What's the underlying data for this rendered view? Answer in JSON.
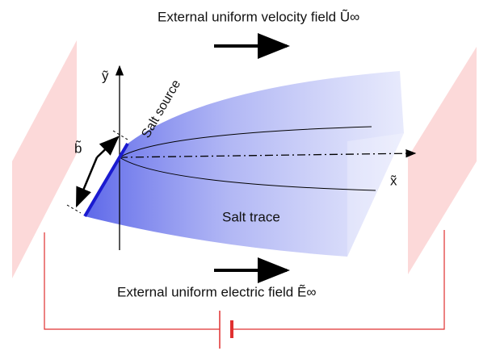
{
  "labels": {
    "velocity_field": "External uniform velocity field  Ũ∞",
    "electric_field": "External uniform electric field  Ẽ∞",
    "salt_source": "Salt source",
    "salt_trace": "Salt trace",
    "y_axis": "ỹ",
    "x_axis": "x̃",
    "width": "b̃"
  }
}
